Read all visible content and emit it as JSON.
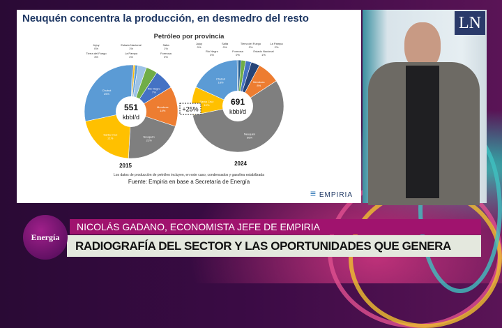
{
  "slide": {
    "title": "Neuquén concentra la producción, en desmedro del resto",
    "chart_title": "Petróleo por provincia",
    "note": "Los datos de producción de petróleo incluyen, en este caso, condensados y gasolina estabilizada",
    "source": "Fuente: Empiria en base a Secretaría de Energía",
    "logo_text": "EMPIRIA",
    "growth_label": "+25%"
  },
  "chart_data": [
    {
      "type": "pie",
      "title": "2015",
      "center_value": "551",
      "center_unit": "kbbl/d",
      "slices": [
        {
          "label": "Jujuy",
          "value": 0,
          "color": "#a5a5a5"
        },
        {
          "label": "Estado Nacional",
          "value": 1,
          "color": "#ffc000"
        },
        {
          "label": "Salta",
          "value": 1,
          "color": "#5b9bd5"
        },
        {
          "label": "Tierra del Fuego",
          "value": 3,
          "color": "#9dc3e6"
        },
        {
          "label": "La Pampa",
          "value": 4,
          "color": "#70ad47"
        },
        {
          "label": "Rio Negro",
          "value": 7,
          "color": "#4472c4"
        },
        {
          "label": "Mendoza",
          "value": 14,
          "color": "#ed7d31"
        },
        {
          "label": "Neuquén",
          "value": 21,
          "color": "#7f7f7f"
        },
        {
          "label": "Santa Cruz",
          "value": 21,
          "color": "#ffc000"
        },
        {
          "label": "Chubut",
          "value": 29,
          "color": "#5b9bd5"
        },
        {
          "label": "Formosa",
          "value": 0,
          "color": "#264478"
        }
      ]
    },
    {
      "type": "pie",
      "title": "2024",
      "center_value": "691",
      "center_unit": "kbbl/d",
      "slices": [
        {
          "label": "Jujuy",
          "value": 0,
          "color": "#a5a5a5"
        },
        {
          "label": "Salta",
          "value": 0,
          "color": "#ffc000"
        },
        {
          "label": "Tierra del Fuego",
          "value": 2,
          "color": "#70ad47"
        },
        {
          "label": "La Pampa",
          "value": 2,
          "color": "#4472c4"
        },
        {
          "label": "Rio Negro",
          "value": 3,
          "color": "#264478"
        },
        {
          "label": "Mendoza",
          "value": 8,
          "color": "#ed7d31"
        },
        {
          "label": "Neuquén",
          "value": 56,
          "color": "#7f7f7f"
        },
        {
          "label": "Santa Cruz",
          "value": 10,
          "color": "#ffc000"
        },
        {
          "label": "Chubut",
          "value": 18,
          "color": "#5b9bd5"
        },
        {
          "label": "Formosa",
          "value": 0,
          "color": "#2e75b6"
        },
        {
          "label": "Estado Nacional",
          "value": 1,
          "color": "#255e91"
        }
      ]
    }
  ],
  "broadcast": {
    "channel_logo": "LN",
    "section": "Energía",
    "speaker": "NICOLÁS GADANO, ECONOMISTA JEFE DE EMPIRIA",
    "headline": "RADIOGRAFÍA DEL SECTOR Y LAS OPORTUNIDADES QUE GENERA"
  }
}
